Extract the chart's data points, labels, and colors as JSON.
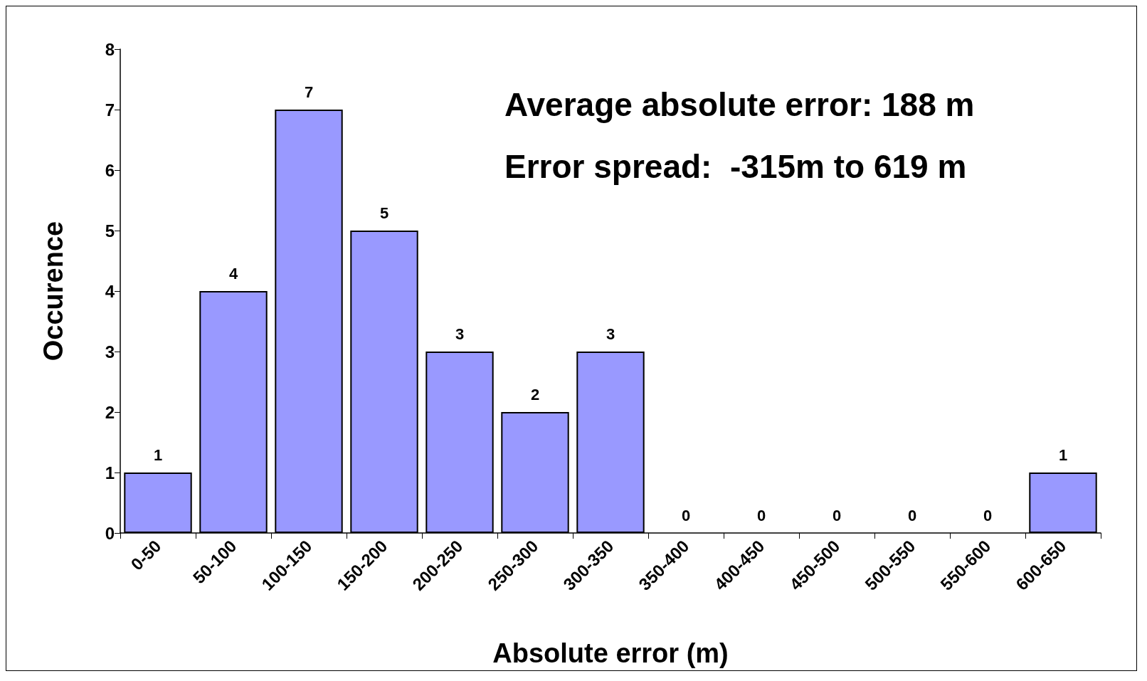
{
  "chart_data": {
    "type": "bar",
    "xlabel": "Absolute error (m)",
    "ylabel": "Occurence",
    "categories": [
      "0-50",
      "50-100",
      "100-150",
      "150-200",
      "200-250",
      "250-300",
      "300-350",
      "350-400",
      "400-450",
      "450-500",
      "500-550",
      "550-600",
      "600-650"
    ],
    "values": [
      1,
      4,
      7,
      5,
      3,
      2,
      3,
      0,
      0,
      0,
      0,
      0,
      1
    ],
    "color": "#9999ff",
    "ylim": [
      0,
      8
    ],
    "yticks": [
      0,
      1,
      2,
      3,
      4,
      5,
      6,
      7,
      8
    ],
    "grid": false,
    "data_labels": true,
    "annotations": [
      "Average absolute error: 188 m",
      "Error spread:  -315m to 619 m"
    ]
  }
}
